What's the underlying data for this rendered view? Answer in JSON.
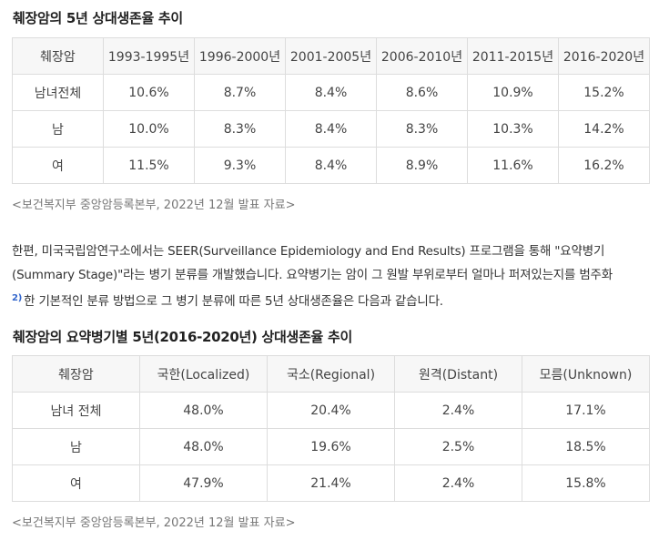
{
  "table1": {
    "title": "췌장암의 5년 상대생존율 추이",
    "headers": [
      "췌장암",
      "1993-1995년",
      "1996-2000년",
      "2001-2005년",
      "2006-2010년",
      "2011-2015년",
      "2016-2020년"
    ],
    "rows": [
      [
        "남녀전체",
        "10.6%",
        "8.7%",
        "8.4%",
        "8.6%",
        "10.9%",
        "15.2%"
      ],
      [
        "남",
        "10.0%",
        "8.3%",
        "8.4%",
        "8.3%",
        "10.3%",
        "14.2%"
      ],
      [
        "여",
        "11.5%",
        "9.3%",
        "8.4%",
        "8.9%",
        "11.6%",
        "16.2%"
      ]
    ],
    "source": "<보건복지부 중앙암등록본부, 2022년 12월 발표 자료>"
  },
  "paragraph": {
    "line1": "한편, 미국국립암연구소에서는 SEER(Surveillance Epidemiology and End Results) 프로그램을 통해 \"요약병기",
    "line2": "(Summary Stage)\"라는 병기 분류를 개발했습니다. 요약병기는 암이 그 원발 부위로부터 얼마나 퍼져있는지를 범주화",
    "footnote": "2)",
    "line3": "한 기본적인 분류 방법으로 그 병기 분류에 따른 5년 상대생존율은 다음과 같습니다."
  },
  "table2": {
    "title": "췌장암의 요약병기별 5년(2016-2020년) 상대생존율 추이",
    "headers": [
      "췌장암",
      "국한(Localized)",
      "국소(Regional)",
      "원격(Distant)",
      "모름(Unknown)"
    ],
    "rows": [
      [
        "남녀 전체",
        "48.0%",
        "20.4%",
        "2.4%",
        "17.1%"
      ],
      [
        "남",
        "48.0%",
        "19.6%",
        "2.5%",
        "18.5%"
      ],
      [
        "여",
        "47.9%",
        "21.4%",
        "2.4%",
        "15.8%"
      ]
    ],
    "source": "<보건복지부 중앙암등록본부, 2022년 12월 발표 자료>"
  }
}
